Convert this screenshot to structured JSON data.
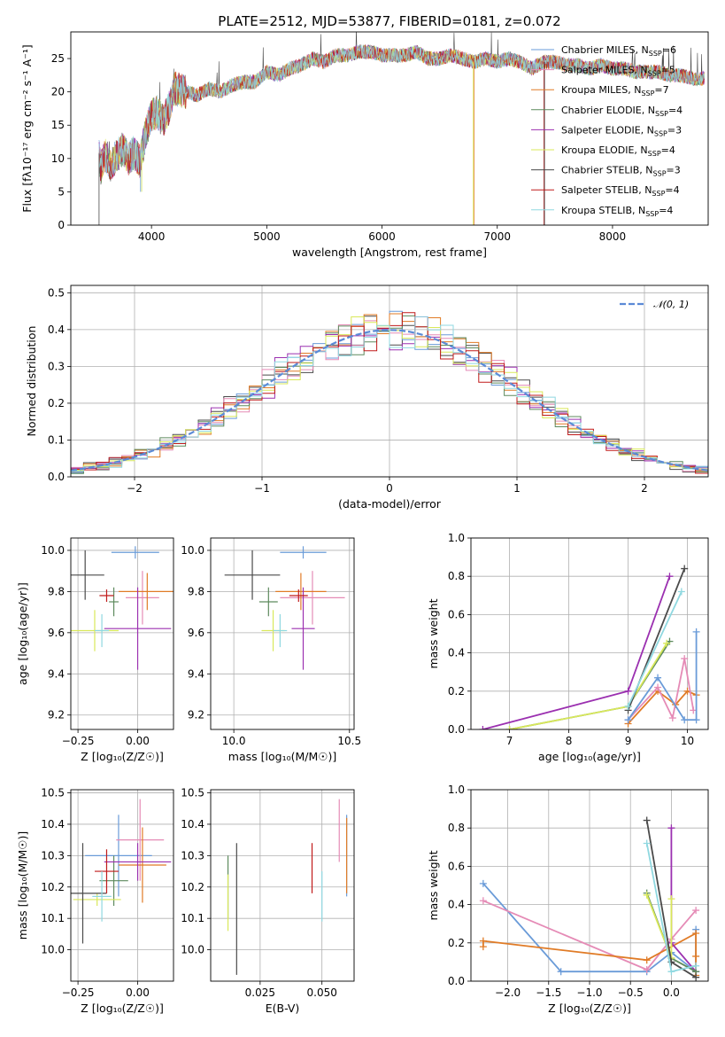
{
  "chart_data": [
    {
      "id": "spectrum",
      "type": "line",
      "title": "PLATE=2512, MJD=53877, FIBERID=0181, z=0.072",
      "xlabel": "wavelength [Angstrom, rest frame]",
      "ylabel": "Flux [fλ10⁻¹⁷ erg cm⁻² s⁻¹ A⁻¹]",
      "xlim": [
        3300,
        8830
      ],
      "ylim": [
        0,
        29
      ],
      "xticks": [
        4000,
        5000,
        6000,
        7000,
        8000
      ],
      "yticks": [
        0,
        5,
        10,
        15,
        20,
        25
      ],
      "grid": false,
      "legend_position": "top-right",
      "x": [
        3540,
        3560,
        3600,
        3650,
        3700,
        3750,
        3800,
        3850,
        3900,
        3950,
        4000,
        4050,
        4100,
        4150,
        4200,
        4300,
        4400,
        4500,
        4600,
        4700,
        4800,
        4900,
        5000,
        5100,
        5200,
        5300,
        5400,
        5500,
        5600,
        5700,
        5800,
        5900,
        6000,
        6100,
        6200,
        6300,
        6400,
        6500,
        6600,
        6700,
        6800,
        6900,
        7000,
        7100,
        7200,
        7300,
        7400,
        7500,
        7600,
        7700,
        7800,
        7900,
        8000,
        8100,
        8200,
        8300,
        8400,
        8500,
        8600,
        8700,
        8800
      ],
      "y": [
        11.5,
        8.5,
        10.5,
        9.0,
        10.5,
        11.5,
        10.0,
        11.0,
        9.5,
        14.0,
        16.5,
        17.0,
        15.5,
        17.5,
        20.5,
        20.0,
        19.5,
        20.5,
        20.0,
        21.0,
        21.5,
        21.5,
        23.0,
        22.5,
        23.5,
        24.0,
        25.0,
        24.5,
        25.5,
        25.5,
        26.0,
        26.0,
        25.5,
        25.5,
        25.5,
        26.0,
        25.0,
        25.0,
        25.5,
        25.0,
        24.5,
        25.0,
        24.5,
        25.0,
        24.5,
        23.5,
        24.5,
        24.5,
        24.0,
        24.0,
        23.5,
        24.0,
        23.5,
        23.5,
        23.0,
        23.0,
        23.0,
        22.5,
        22.5,
        22.0,
        22.0
      ],
      "series": [
        {
          "name": "Chabrier MILES, N",
          "sub": "SSP",
          "suffix": "=6",
          "color": "#6a9bd8"
        },
        {
          "name": "Salpeter MILES, N",
          "sub": "SSP",
          "suffix": "=5",
          "color": "#e58bb6"
        },
        {
          "name": "Kroupa MILES, N",
          "sub": "SSP",
          "suffix": "=7",
          "color": "#e07b26"
        },
        {
          "name": "Chabrier ELODIE, N",
          "sub": "SSP",
          "suffix": "=4",
          "color": "#5d8a5d"
        },
        {
          "name": "Salpeter ELODIE, N",
          "sub": "SSP",
          "suffix": "=3",
          "color": "#9b30b0"
        },
        {
          "name": "Kroupa ELODIE, N",
          "sub": "SSP",
          "suffix": "=4",
          "color": "#d9e85a"
        },
        {
          "name": "Chabrier STELIB, N",
          "sub": "SSP",
          "suffix": "=3",
          "color": "#4a4a4a"
        },
        {
          "name": "Salpeter STELIB, N",
          "sub": "SSP",
          "suffix": "=4",
          "color": "#c01a1a"
        },
        {
          "name": "Kroupa STELIB, N",
          "sub": "SSP",
          "suffix": "=4",
          "color": "#8fd8e0"
        }
      ]
    },
    {
      "id": "residuals",
      "type": "line",
      "xlabel": "(data-model)/error",
      "ylabel": "Normed distribution",
      "xlim": [
        -2.5,
        2.5
      ],
      "ylim": [
        0,
        0.52
      ],
      "xticks": [
        -2,
        -1,
        0,
        1,
        2
      ],
      "yticks": [
        0.0,
        0.1,
        0.2,
        0.3,
        0.4,
        0.5
      ],
      "grid": true,
      "legend_position": "top-right",
      "gaussian_label": "𝒩(0, 1)",
      "gaussian_color": "#5b8ad6"
    },
    {
      "id": "age-vs-Z",
      "type": "scatter",
      "xlabel": "Z [log₁₀(Z/Z☉)]",
      "ylabel": "age  [log₁₀(age/yr)]",
      "xlim": [
        -0.28,
        0.15
      ],
      "ylim": [
        9.13,
        10.06
      ],
      "xticks": [
        -0.25,
        0.0
      ],
      "yticks": [
        9.2,
        9.4,
        9.6,
        9.8,
        10.0
      ],
      "grid": true,
      "points": [
        {
          "series": 0,
          "x": -0.01,
          "y": 9.99,
          "xerr": 0.1,
          "yerr": 0.03
        },
        {
          "series": 1,
          "x": 0.02,
          "y": 9.77,
          "xerr": 0.07,
          "yerr": 0.13
        },
        {
          "series": 2,
          "x": 0.04,
          "y": 9.8,
          "xerr": 0.12,
          "yerr": 0.09
        },
        {
          "series": 3,
          "x": -0.1,
          "y": 9.75,
          "xerr": 0.02,
          "yerr": 0.07
        },
        {
          "series": 4,
          "x": 0.0,
          "y": 9.62,
          "xerr": 0.14,
          "yerr": 0.2
        },
        {
          "series": 5,
          "x": -0.18,
          "y": 9.61,
          "xerr": 0.1,
          "yerr": 0.1
        },
        {
          "series": 6,
          "x": -0.22,
          "y": 9.88,
          "xerr": 0.08,
          "yerr": 0.12
        },
        {
          "series": 7,
          "x": -0.13,
          "y": 9.78,
          "xerr": 0.03,
          "yerr": 0.03
        },
        {
          "series": 8,
          "x": -0.15,
          "y": 9.61,
          "xerr": 0.03,
          "yerr": 0.08
        }
      ]
    },
    {
      "id": "age-vs-mass",
      "type": "scatter",
      "xlabel": "mass [log₁₀(M/M☉)]",
      "ylabel": "",
      "xlim": [
        9.9,
        10.52
      ],
      "ylim": [
        9.13,
        10.06
      ],
      "xticks": [
        10.0,
        10.5
      ],
      "yticks": [
        9.2,
        9.4,
        9.6,
        9.8,
        10.0
      ],
      "grid": true,
      "points": [
        {
          "series": 0,
          "x": 10.3,
          "y": 9.99,
          "xerr": 0.1,
          "yerr": 0.03
        },
        {
          "series": 1,
          "x": 10.34,
          "y": 9.77,
          "xerr": 0.14,
          "yerr": 0.13
        },
        {
          "series": 2,
          "x": 10.29,
          "y": 9.8,
          "xerr": 0.11,
          "yerr": 0.09
        },
        {
          "series": 3,
          "x": 10.15,
          "y": 9.75,
          "xerr": 0.04,
          "yerr": 0.07
        },
        {
          "series": 4,
          "x": 10.3,
          "y": 9.62,
          "xerr": 0.05,
          "yerr": 0.2
        },
        {
          "series": 5,
          "x": 10.17,
          "y": 9.61,
          "xerr": 0.05,
          "yerr": 0.1
        },
        {
          "series": 6,
          "x": 10.08,
          "y": 9.88,
          "xerr": 0.12,
          "yerr": 0.12
        },
        {
          "series": 7,
          "x": 10.28,
          "y": 9.78,
          "xerr": 0.04,
          "yerr": 0.03
        },
        {
          "series": 8,
          "x": 10.2,
          "y": 9.61,
          "xerr": 0.03,
          "yerr": 0.08
        }
      ]
    },
    {
      "id": "weight-vs-age",
      "type": "line",
      "xlabel": "age  [log₁₀(age/yr)]",
      "ylabel": "mass weight",
      "xlim": [
        6.35,
        10.35
      ],
      "ylim": [
        0,
        1.0
      ],
      "xticks": [
        7,
        8,
        9,
        10
      ],
      "yticks": [
        0.0,
        0.2,
        0.4,
        0.6,
        0.8,
        1.0
      ],
      "grid": true,
      "series_points": [
        {
          "series": 2,
          "x": [
            9.0,
            9.5,
            9.8,
            10.0,
            10.15
          ],
          "y": [
            0.03,
            0.2,
            0.13,
            0.2,
            0.18
          ]
        },
        {
          "series": 1,
          "x": [
            9.0,
            9.5,
            9.75,
            9.95,
            10.1
          ],
          "y": [
            0.05,
            0.22,
            0.06,
            0.37,
            0.1
          ]
        },
        {
          "series": 0,
          "x": [
            9.0,
            9.5,
            9.95,
            10.15,
            10.15
          ],
          "y": [
            0.05,
            0.27,
            0.05,
            0.05,
            0.51
          ]
        },
        {
          "series": 4,
          "x": [
            6.55,
            9.0,
            9.7
          ],
          "y": [
            0.0,
            0.2,
            0.8
          ]
        },
        {
          "series": 3,
          "x": [
            7.0,
            9.0,
            9.7
          ],
          "y": [
            0.0,
            0.12,
            0.46
          ]
        },
        {
          "series": 5,
          "x": [
            7.0,
            9.0,
            9.65
          ],
          "y": [
            0.0,
            0.12,
            0.45
          ]
        },
        {
          "series": 6,
          "x": [
            9.0,
            9.95
          ],
          "y": [
            0.1,
            0.84
          ]
        },
        {
          "series": 8,
          "x": [
            9.0,
            9.9
          ],
          "y": [
            0.12,
            0.72
          ]
        }
      ]
    },
    {
      "id": "mass-vs-Z",
      "type": "scatter",
      "xlabel": "Z [log₁₀(Z/Z☉)]",
      "ylabel": "mass [log₁₀(M/M☉)]",
      "xlim": [
        -0.28,
        0.15
      ],
      "ylim": [
        9.9,
        10.51
      ],
      "xticks": [
        -0.25,
        0.0
      ],
      "yticks": [
        10.0,
        10.1,
        10.2,
        10.3,
        10.4,
        10.5
      ],
      "grid": true,
      "points": [
        {
          "series": 0,
          "x": -0.08,
          "y": 10.3,
          "xerr": 0.14,
          "yerr": 0.13
        },
        {
          "series": 1,
          "x": 0.01,
          "y": 10.35,
          "xerr": 0.1,
          "yerr": 0.13
        },
        {
          "series": 2,
          "x": 0.02,
          "y": 10.27,
          "xerr": 0.1,
          "yerr": 0.12
        },
        {
          "series": 3,
          "x": -0.1,
          "y": 10.22,
          "xerr": 0.06,
          "yerr": 0.08
        },
        {
          "series": 4,
          "x": 0.0,
          "y": 10.28,
          "xerr": 0.14,
          "yerr": 0.06
        },
        {
          "series": 5,
          "x": -0.17,
          "y": 10.16,
          "xerr": 0.1,
          "yerr": 0.02
        },
        {
          "series": 6,
          "x": -0.23,
          "y": 10.18,
          "xerr": 0.1,
          "yerr": 0.16
        },
        {
          "series": 7,
          "x": -0.13,
          "y": 10.25,
          "xerr": 0.05,
          "yerr": 0.07
        },
        {
          "series": 8,
          "x": -0.15,
          "y": 10.17,
          "xerr": 0.04,
          "yerr": 0.08
        }
      ]
    },
    {
      "id": "mass-vs-EBV",
      "type": "scatter",
      "xlabel": "E(B-V)",
      "ylabel": "",
      "xlim": [
        0.005,
        0.063
      ],
      "ylim": [
        9.9,
        10.51
      ],
      "xticks": [
        0.025,
        0.05
      ],
      "yticks": [
        10.0,
        10.1,
        10.2,
        10.3,
        10.4,
        10.5
      ],
      "grid": true,
      "points": [
        {
          "series": 0,
          "x": 0.06,
          "y": 10.3,
          "xerr": 0,
          "yerr": 0.13
        },
        {
          "series": 1,
          "x": 0.057,
          "y": 10.38,
          "xerr": 0,
          "yerr": 0.1
        },
        {
          "series": 2,
          "x": 0.06,
          "y": 10.3,
          "xerr": 0,
          "yerr": 0.12
        },
        {
          "series": 3,
          "x": 0.012,
          "y": 10.2,
          "xerr": 0,
          "yerr": 0.1
        },
        {
          "series": 5,
          "x": 0.012,
          "y": 10.15,
          "xerr": 0,
          "yerr": 0.09
        },
        {
          "series": 6,
          "x": 0.0155,
          "y": 10.13,
          "xerr": 0,
          "yerr": 0.21
        },
        {
          "series": 7,
          "x": 0.046,
          "y": 10.26,
          "xerr": 0,
          "yerr": 0.08
        },
        {
          "series": 8,
          "x": 0.05,
          "y": 10.17,
          "xerr": 0,
          "yerr": 0.08
        }
      ]
    },
    {
      "id": "weight-vs-Z",
      "type": "line",
      "xlabel": "Z [log₁₀(Z/Z☉)]",
      "ylabel": "mass weight",
      "xlim": [
        -2.45,
        0.45
      ],
      "ylim": [
        0,
        1.0
      ],
      "xticks": [
        -2.0,
        -1.5,
        -1.0,
        -0.5,
        0.0
      ],
      "yticks": [
        0.0,
        0.2,
        0.4,
        0.6,
        0.8,
        1.0
      ],
      "grid": true,
      "series_points": [
        {
          "series": 0,
          "x": [
            -2.3,
            -1.35,
            -0.3,
            0.0,
            0.3,
            0.3
          ],
          "y": [
            0.51,
            0.05,
            0.05,
            0.15,
            0.05,
            0.27
          ]
        },
        {
          "series": 1,
          "x": [
            -2.3,
            -0.3,
            0.0,
            0.3
          ],
          "y": [
            0.42,
            0.06,
            0.22,
            0.37
          ]
        },
        {
          "series": 2,
          "x": [
            -2.3,
            -2.3,
            -0.3,
            0.3,
            0.3,
            0.3
          ],
          "y": [
            0.18,
            0.21,
            0.11,
            0.25,
            0.13,
            0.03
          ]
        },
        {
          "series": 4,
          "x": [
            0.0,
            0.0,
            0.3
          ],
          "y": [
            0.8,
            0.2,
            0.05
          ]
        },
        {
          "series": 3,
          "x": [
            -0.3,
            0.0,
            0.3
          ],
          "y": [
            0.46,
            0.12,
            0.05
          ]
        },
        {
          "series": 5,
          "x": [
            -0.3,
            0.0,
            0.0
          ],
          "y": [
            0.45,
            0.12,
            0.43
          ]
        },
        {
          "series": 6,
          "x": [
            -0.3,
            0.0,
            0.3
          ],
          "y": [
            0.84,
            0.1,
            0.02
          ]
        },
        {
          "series": 8,
          "x": [
            -0.3,
            0.0,
            0.3
          ],
          "y": [
            0.72,
            0.05,
            0.08
          ]
        }
      ]
    }
  ]
}
